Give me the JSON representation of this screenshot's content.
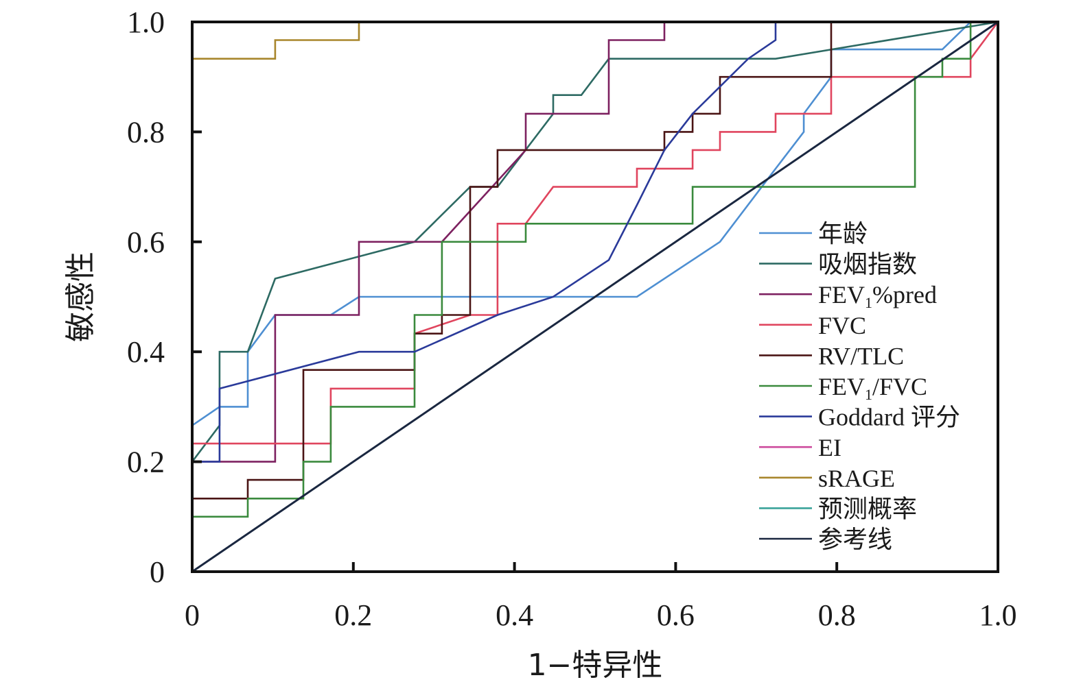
{
  "chart_data": {
    "type": "line",
    "title": "",
    "xlabel": "1−特异性",
    "ylabel": "敏感性",
    "xlim": [
      0,
      1
    ],
    "ylim": [
      0,
      1
    ],
    "x_ticks": [
      "0",
      "0.2",
      "0.4",
      "0.6",
      "0.8",
      "1.0"
    ],
    "y_ticks": [
      "0",
      "0.2",
      "0.4",
      "0.6",
      "0.8",
      "1.0"
    ],
    "grid": false,
    "legend_position": "right",
    "series": [
      {
        "name": "年龄",
        "legend_main": "年龄",
        "legend_sub": "",
        "legend_tail": "",
        "color": "#4e8fd2",
        "points": [
          [
            0,
            0.266
          ],
          [
            0.034,
            0.3
          ],
          [
            0.069,
            0.3
          ],
          [
            0.069,
            0.4
          ],
          [
            0.103,
            0.467
          ],
          [
            0.172,
            0.467
          ],
          [
            0.207,
            0.5
          ],
          [
            0.552,
            0.5
          ],
          [
            0.655,
            0.6
          ],
          [
            0.724,
            0.733
          ],
          [
            0.759,
            0.8
          ],
          [
            0.759,
            0.833
          ],
          [
            0.793,
            0.9
          ],
          [
            0.793,
            0.95
          ],
          [
            0.931,
            0.95
          ],
          [
            0.966,
            1
          ],
          [
            1,
            1
          ]
        ]
      },
      {
        "name": "吸烟指数",
        "legend_main": "吸烟指数",
        "legend_sub": "",
        "legend_tail": "",
        "color": "#2d6a63",
        "points": [
          [
            0,
            0.1
          ],
          [
            0,
            0.2
          ],
          [
            0.034,
            0.266
          ],
          [
            0.034,
            0.4
          ],
          [
            0.069,
            0.4
          ],
          [
            0.103,
            0.533
          ],
          [
            0.276,
            0.6
          ],
          [
            0.345,
            0.7
          ],
          [
            0.379,
            0.7
          ],
          [
            0.448,
            0.833
          ],
          [
            0.448,
            0.867
          ],
          [
            0.483,
            0.867
          ],
          [
            0.517,
            0.933
          ],
          [
            0.724,
            0.933
          ],
          [
            1,
            1
          ]
        ]
      },
      {
        "name": "FEV1%pred",
        "legend_main": "FEV",
        "legend_sub": "1",
        "legend_tail": "%pred",
        "color": "#7d2160",
        "points": [
          [
            0,
            0.2
          ],
          [
            0.103,
            0.2
          ],
          [
            0.103,
            0.467
          ],
          [
            0.207,
            0.467
          ],
          [
            0.207,
            0.6
          ],
          [
            0.31,
            0.6
          ],
          [
            0.31,
            0.6
          ],
          [
            0.414,
            0.767
          ],
          [
            0.414,
            0.833
          ],
          [
            0.517,
            0.833
          ],
          [
            0.517,
            0.967
          ],
          [
            0.586,
            0.967
          ],
          [
            0.586,
            1
          ],
          [
            1,
            1
          ]
        ]
      },
      {
        "name": "FVC",
        "legend_main": "FVC",
        "legend_sub": "",
        "legend_tail": "",
        "color": "#e0455e",
        "points": [
          [
            0,
            0.233
          ],
          [
            0.172,
            0.233
          ],
          [
            0.172,
            0.333
          ],
          [
            0.276,
            0.333
          ],
          [
            0.276,
            0.433
          ],
          [
            0.345,
            0.467
          ],
          [
            0.379,
            0.467
          ],
          [
            0.379,
            0.633
          ],
          [
            0.414,
            0.633
          ],
          [
            0.448,
            0.7
          ],
          [
            0.552,
            0.7
          ],
          [
            0.552,
            0.733
          ],
          [
            0.621,
            0.733
          ],
          [
            0.621,
            0.767
          ],
          [
            0.655,
            0.767
          ],
          [
            0.655,
            0.8
          ],
          [
            0.724,
            0.8
          ],
          [
            0.724,
            0.833
          ],
          [
            0.793,
            0.833
          ],
          [
            0.793,
            0.9
          ],
          [
            0.966,
            0.9
          ],
          [
            0.966,
            0.933
          ],
          [
            1,
            1
          ]
        ]
      },
      {
        "name": "RV/TLC",
        "legend_main": "RV/TLC",
        "legend_sub": "",
        "legend_tail": "",
        "color": "#4a1414",
        "points": [
          [
            0,
            0.133
          ],
          [
            0.069,
            0.133
          ],
          [
            0.069,
            0.167
          ],
          [
            0.138,
            0.167
          ],
          [
            0.138,
            0.367
          ],
          [
            0.276,
            0.367
          ],
          [
            0.276,
            0.433
          ],
          [
            0.31,
            0.433
          ],
          [
            0.31,
            0.467
          ],
          [
            0.345,
            0.467
          ],
          [
            0.345,
            0.7
          ],
          [
            0.379,
            0.7
          ],
          [
            0.379,
            0.767
          ],
          [
            0.586,
            0.767
          ],
          [
            0.586,
            0.8
          ],
          [
            0.621,
            0.8
          ],
          [
            0.621,
            0.833
          ],
          [
            0.655,
            0.833
          ],
          [
            0.655,
            0.9
          ],
          [
            0.793,
            0.9
          ],
          [
            0.793,
            1
          ],
          [
            1,
            1
          ]
        ]
      },
      {
        "name": "FEV1/FVC",
        "legend_main": "FEV",
        "legend_sub": "1",
        "legend_tail": "/FVC",
        "color": "#3a8a3d",
        "points": [
          [
            0,
            0.1
          ],
          [
            0.069,
            0.1
          ],
          [
            0.069,
            0.133
          ],
          [
            0.138,
            0.133
          ],
          [
            0.138,
            0.2
          ],
          [
            0.172,
            0.2
          ],
          [
            0.172,
            0.3
          ],
          [
            0.276,
            0.3
          ],
          [
            0.276,
            0.467
          ],
          [
            0.31,
            0.467
          ],
          [
            0.31,
            0.6
          ],
          [
            0.414,
            0.6
          ],
          [
            0.414,
            0.633
          ],
          [
            0.621,
            0.633
          ],
          [
            0.621,
            0.7
          ],
          [
            0.897,
            0.7
          ],
          [
            0.897,
            0.9
          ],
          [
            0.931,
            0.9
          ],
          [
            0.931,
            0.933
          ],
          [
            0.966,
            0.933
          ],
          [
            0.966,
            1
          ],
          [
            1,
            1
          ]
        ]
      },
      {
        "name": "Goddard 评分",
        "legend_main": "Goddard 评分",
        "legend_sub": "",
        "legend_tail": "",
        "color": "#2a3a9a",
        "points": [
          [
            0,
            0.2
          ],
          [
            0.034,
            0.2
          ],
          [
            0.034,
            0.333
          ],
          [
            0.207,
            0.4
          ],
          [
            0.276,
            0.4
          ],
          [
            0.379,
            0.467
          ],
          [
            0.448,
            0.5
          ],
          [
            0.517,
            0.567
          ],
          [
            0.552,
            0.667
          ],
          [
            0.586,
            0.767
          ],
          [
            0.621,
            0.833
          ],
          [
            0.69,
            0.933
          ],
          [
            0.724,
            0.967
          ],
          [
            0.724,
            1
          ],
          [
            1,
            1
          ]
        ]
      },
      {
        "name": "EI",
        "legend_main": "EI",
        "legend_sub": "",
        "legend_tail": "",
        "color": "#cc4a9c",
        "points": [
          [
            0,
            0
          ],
          [
            0,
            1
          ],
          [
            1,
            1
          ]
        ]
      },
      {
        "name": "sRAGE",
        "legend_main": "sRAGE",
        "legend_sub": "",
        "legend_tail": "",
        "color": "#a8862c",
        "points": [
          [
            0,
            0.933
          ],
          [
            0.103,
            0.933
          ],
          [
            0.103,
            0.967
          ],
          [
            0.207,
            0.967
          ],
          [
            0.207,
            1
          ],
          [
            1,
            1
          ]
        ]
      },
      {
        "name": "预测概率",
        "legend_main": "预测概率",
        "legend_sub": "",
        "legend_tail": "",
        "color": "#3aa39a",
        "points": [
          [
            0,
            0
          ],
          [
            0,
            1
          ],
          [
            1,
            1
          ]
        ]
      },
      {
        "name": "参考线",
        "legend_main": "参考线",
        "legend_sub": "",
        "legend_tail": "",
        "color": "#1a2740",
        "points": [
          [
            0,
            0
          ],
          [
            1,
            1
          ]
        ]
      }
    ]
  }
}
